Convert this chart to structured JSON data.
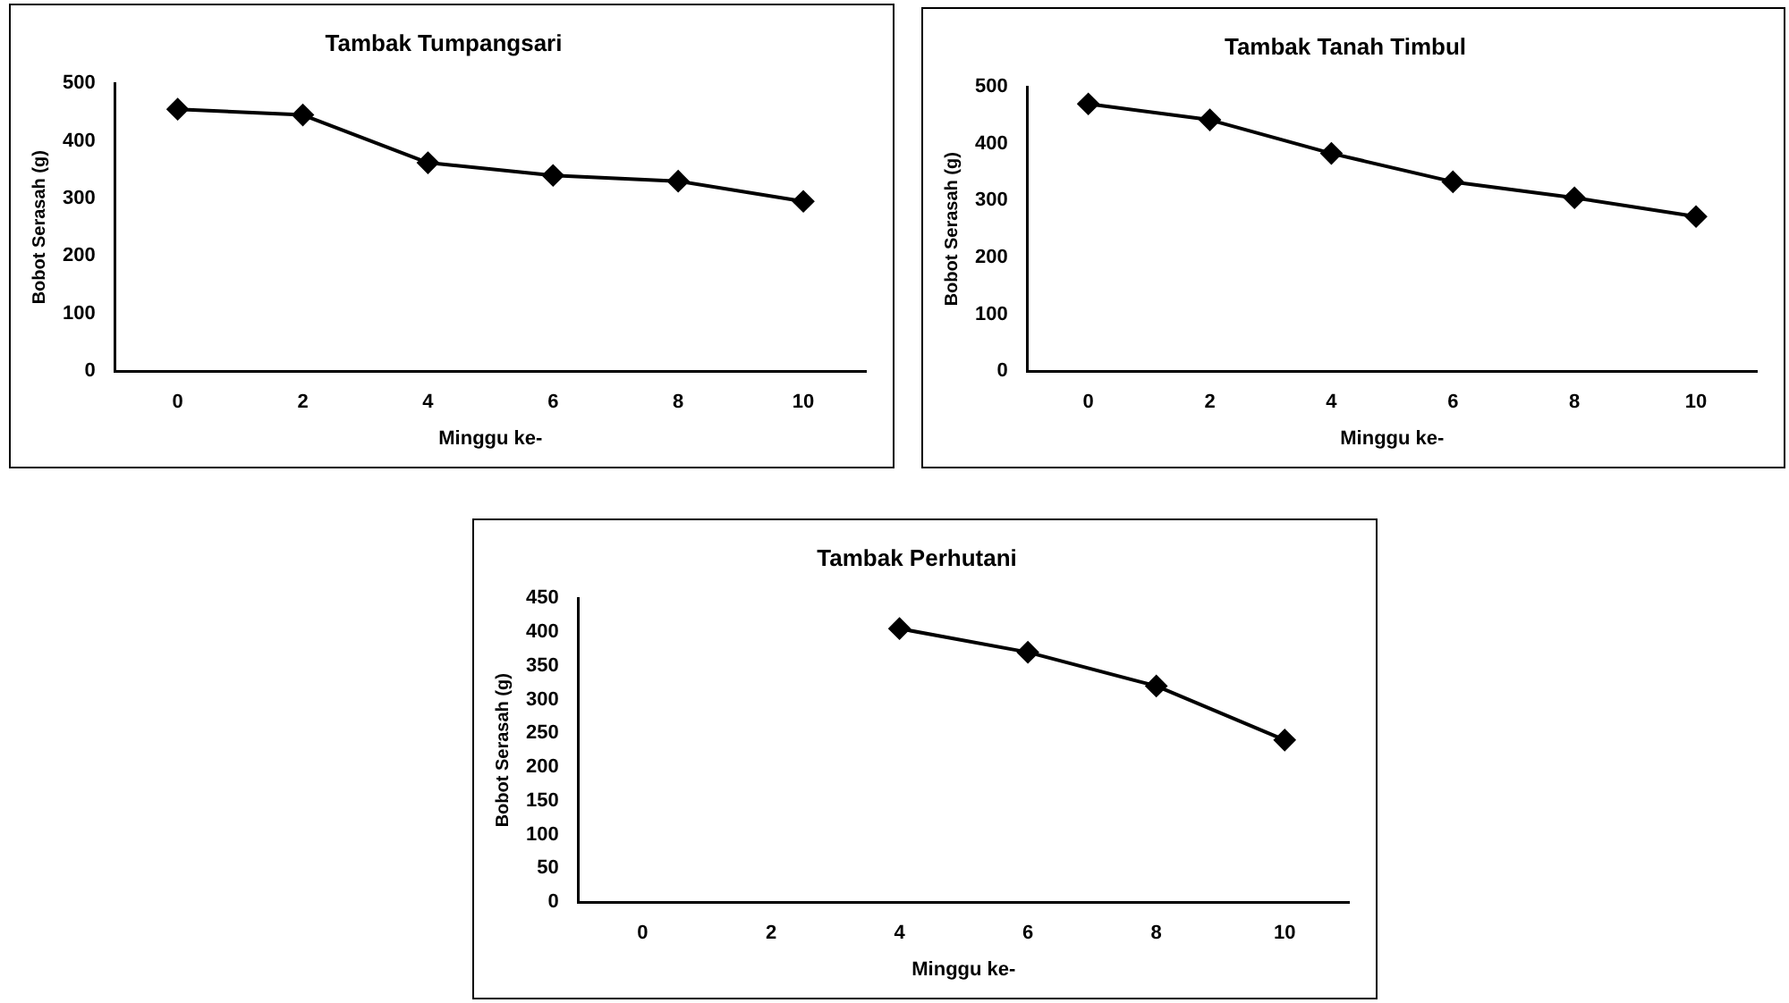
{
  "chart_data": [
    {
      "type": "line",
      "title": "Tambak Tumpangsari",
      "xlabel": "Minggu ke-",
      "ylabel": "Bobot Serasah (g)",
      "categories": [
        "0",
        "2",
        "4",
        "6",
        "8",
        "10"
      ],
      "series": [
        {
          "color": "#000000",
          "values": [
            455,
            445,
            362,
            340,
            330,
            295
          ]
        }
      ],
      "ylim": [
        0,
        500
      ],
      "yticks": [
        0,
        100,
        200,
        300,
        400,
        500
      ],
      "grid": false,
      "legend": false,
      "marker": "diamond",
      "line_style": "solid"
    },
    {
      "type": "line",
      "title": "Tambak Tanah Timbul",
      "xlabel": "Minggu ke-",
      "ylabel": "Bobot Serasah (g)",
      "categories": [
        "0",
        "2",
        "4",
        "6",
        "8",
        "10"
      ],
      "series": [
        {
          "color": "#000000",
          "values": [
            470,
            442,
            383,
            333,
            305,
            272
          ]
        }
      ],
      "ylim": [
        0,
        500
      ],
      "yticks": [
        0,
        100,
        200,
        300,
        400,
        500
      ],
      "grid": false,
      "legend": false,
      "marker": "diamond",
      "line_style": "solid"
    },
    {
      "type": "line",
      "title": "Tambak Perhutani",
      "xlabel": "Minggu ke-",
      "ylabel": "Bobot Serasah (g)",
      "categories": [
        "0",
        "2",
        "4",
        "6",
        "8",
        "10"
      ],
      "series": [
        {
          "color": "#000000",
          "values": [
            null,
            null,
            405,
            370,
            320,
            240
          ]
        }
      ],
      "ylim": [
        0,
        450
      ],
      "yticks": [
        0,
        50,
        100,
        150,
        200,
        250,
        300,
        350,
        400,
        450
      ],
      "grid": false,
      "legend": false,
      "marker": "diamond",
      "line_style": "solid"
    }
  ]
}
